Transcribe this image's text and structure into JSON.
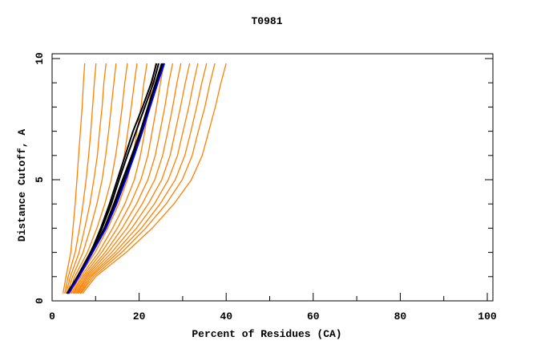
{
  "chart_data": {
    "type": "line",
    "title": "T0981",
    "xlabel": "Percent of Residues (CA)",
    "ylabel": "Distance Cutoff, A",
    "xlim": [
      0,
      100
    ],
    "ylim": [
      0,
      10
    ],
    "x_ticks": [
      "0",
      "20",
      "40",
      "60",
      "80",
      "100"
    ],
    "y_ticks": [
      "0",
      "5",
      "10"
    ],
    "grid": false,
    "legend": "none",
    "colors": {
      "models": "#ff8000",
      "highlighted": "#000000",
      "reference": "#0000ff"
    },
    "y_levels": [
      0.3,
      1,
      2,
      3,
      4,
      5,
      6,
      7,
      8,
      9,
      9.8
    ],
    "series": [
      {
        "group": "models",
        "x": [
          2.5,
          3.2,
          4.3,
          4.8,
          5.3,
          5.7,
          6.1,
          6.5,
          6.9,
          7.2,
          7.5
        ]
      },
      {
        "group": "models",
        "x": [
          2.9,
          3.7,
          5.3,
          6.3,
          7.1,
          7.8,
          8.4,
          8.9,
          9.3,
          9.7,
          10.1
        ]
      },
      {
        "group": "models",
        "x": [
          3.2,
          4.2,
          6.2,
          7.5,
          8.7,
          9.6,
          10.4,
          10.9,
          11.5,
          11.9,
          12.4
        ]
      },
      {
        "group": "models",
        "x": [
          3.5,
          4.7,
          7.1,
          8.8,
          10.3,
          11.5,
          12.3,
          13.0,
          13.6,
          14.2,
          14.7
        ]
      },
      {
        "group": "models",
        "x": [
          3.9,
          5.2,
          8.1,
          10.3,
          12.1,
          13.6,
          14.6,
          15.4,
          16.1,
          16.7,
          17.3
        ]
      },
      {
        "group": "models",
        "x": [
          4.2,
          5.7,
          9.0,
          11.5,
          13.7,
          15.4,
          16.6,
          17.4,
          18.2,
          18.9,
          19.5
        ]
      },
      {
        "group": "models",
        "x": [
          4.5,
          6.2,
          9.9,
          12.8,
          15.3,
          17.3,
          18.6,
          19.5,
          20.4,
          21.1,
          21.8
        ]
      },
      {
        "group": "models",
        "x": [
          4.8,
          6.6,
          10.7,
          13.9,
          16.7,
          18.9,
          20.3,
          21.3,
          22.2,
          23.0,
          23.8
        ]
      },
      {
        "group": "models",
        "x": [
          5.0,
          7.0,
          11.4,
          15.0,
          18.0,
          20.4,
          22.0,
          23.0,
          24.0,
          24.9,
          25.7
        ]
      },
      {
        "group": "models",
        "x": [
          5.3,
          7.4,
          12.2,
          16.1,
          19.4,
          22.0,
          23.7,
          24.8,
          25.9,
          26.8,
          27.7
        ]
      },
      {
        "group": "models",
        "x": [
          5.6,
          7.8,
          12.9,
          17.2,
          20.7,
          23.6,
          25.4,
          26.6,
          27.7,
          28.7,
          29.6
        ]
      },
      {
        "group": "models",
        "x": [
          5.8,
          8.2,
          13.7,
          18.3,
          22.1,
          25.2,
          27.1,
          28.3,
          29.5,
          30.6,
          31.6
        ]
      },
      {
        "group": "models",
        "x": [
          6.1,
          8.6,
          14.5,
          19.4,
          23.5,
          26.7,
          28.8,
          30.1,
          31.4,
          32.5,
          33.5
        ]
      },
      {
        "group": "models",
        "x": [
          6.4,
          9.0,
          15.2,
          20.5,
          24.8,
          28.3,
          30.5,
          31.9,
          33.2,
          34.4,
          35.5
        ]
      },
      {
        "group": "models",
        "x": [
          6.6,
          9.5,
          16.0,
          21.5,
          26.2,
          29.9,
          32.2,
          33.6,
          35.1,
          36.3,
          37.4
        ]
      },
      {
        "group": "models",
        "x": [
          7.0,
          10.0,
          17.0,
          23.0,
          28.0,
          32.0,
          34.5,
          36.0,
          37.5,
          38.8,
          40.0
        ]
      },
      {
        "group": "highlighted",
        "x": [
          3.4,
          5.8,
          8.8,
          11.5,
          13.6,
          15.4,
          17.3,
          19.3,
          21.3,
          23.3,
          24.5
        ]
      },
      {
        "group": "highlighted",
        "x": [
          3.6,
          6.0,
          9.0,
          12.0,
          14.2,
          16.2,
          18.3,
          20.3,
          22.0,
          23.8,
          25.2
        ]
      },
      {
        "group": "highlighted",
        "x": [
          3.5,
          5.9,
          8.9,
          11.2,
          13.2,
          15.0,
          16.8,
          18.6,
          20.8,
          22.8,
          24.0
        ]
      },
      {
        "group": "highlighted",
        "x": [
          3.7,
          6.1,
          9.1,
          12.2,
          14.5,
          16.6,
          18.6,
          20.6,
          22.3,
          24.0,
          25.5
        ]
      },
      {
        "group": "reference",
        "x": [
          3.8,
          6.2,
          9.3,
          12.4,
          14.8,
          16.9,
          18.9,
          20.8,
          22.5,
          24.3,
          25.8
        ]
      }
    ]
  }
}
